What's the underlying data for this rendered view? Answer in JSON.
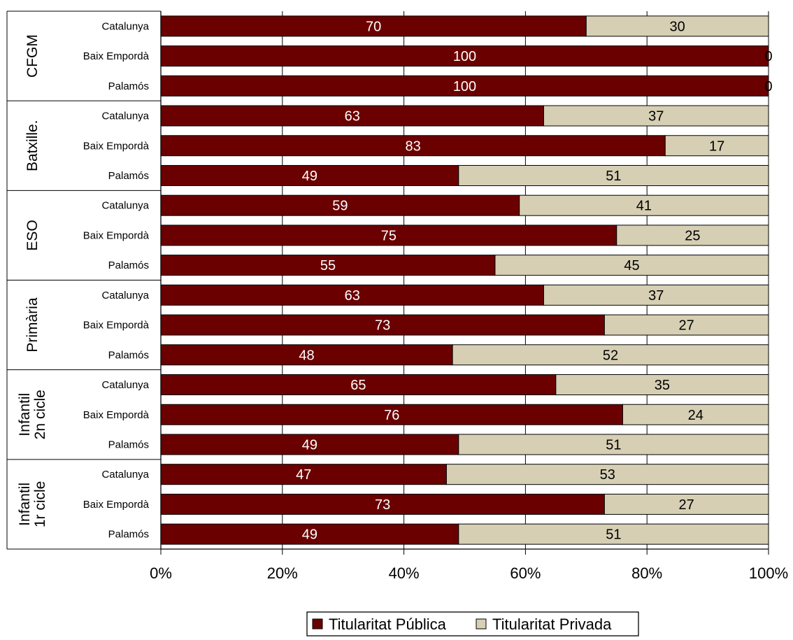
{
  "chart_data": {
    "type": "bar",
    "orientation": "horizontal",
    "stacked": "percent",
    "xlim": [
      0,
      100
    ],
    "x_ticks": [
      "0%",
      "20%",
      "40%",
      "60%",
      "80%",
      "100%"
    ],
    "grid": "vertical",
    "legend_position": "bottom",
    "colors": {
      "publica": "#6b0000",
      "privada": "#d6cfb4"
    },
    "groups": [
      {
        "label": [
          "CFGM"
        ],
        "categories": [
          "Catalunya",
          "Baix Empordà",
          "Palamós"
        ]
      },
      {
        "label": [
          "Batxille."
        ],
        "categories": [
          "Catalunya",
          "Baix Empordà",
          "Palamós"
        ]
      },
      {
        "label": [
          "ESO"
        ],
        "categories": [
          "Catalunya",
          "Baix Empordà",
          "Palamós"
        ]
      },
      {
        "label": [
          "Primària"
        ],
        "categories": [
          "Catalunya",
          "Baix Empordà",
          "Palamós"
        ]
      },
      {
        "label": [
          "Infantil",
          "2n cicle"
        ],
        "categories": [
          "Catalunya",
          "Baix Empordà",
          "Palamós"
        ]
      },
      {
        "label": [
          "Infantil",
          "1r cicle"
        ],
        "categories": [
          "Catalunya",
          "Baix Empordà",
          "Palamós"
        ]
      }
    ],
    "series": [
      {
        "name": "Titularitat Pública",
        "values": [
          70,
          100,
          100,
          63,
          83,
          49,
          59,
          75,
          55,
          63,
          73,
          48,
          65,
          76,
          49,
          47,
          73,
          49
        ]
      },
      {
        "name": "Titularitat Privada",
        "values": [
          30,
          0,
          0,
          37,
          17,
          51,
          41,
          25,
          45,
          37,
          27,
          52,
          35,
          24,
          51,
          53,
          27,
          51
        ]
      }
    ]
  }
}
